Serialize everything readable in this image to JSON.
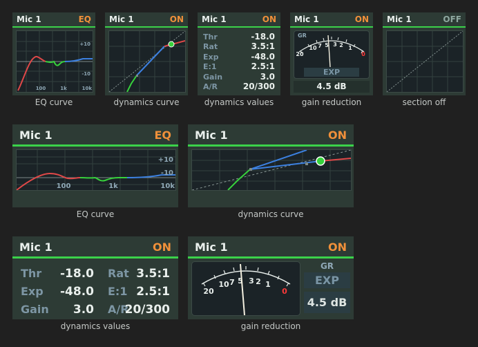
{
  "channel_name": "Mic 1",
  "colors": {
    "accent_line": "#3bd24a",
    "status_on": "#f0903a",
    "status_off": "#8fa8a0",
    "eq_low": "#e04848",
    "eq_mid": "#37d23c",
    "eq_high": "#3c80e0"
  },
  "panels": {
    "eq": {
      "status": "EQ",
      "caption": "EQ curve",
      "axis_labels": [
        "+10",
        "-10",
        "100",
        "1k",
        "10k"
      ]
    },
    "dynamics": {
      "status": "ON",
      "caption": "dynamics curve"
    },
    "values": {
      "status": "ON",
      "caption": "dynamics values",
      "params": [
        {
          "label": "Thr",
          "value": "-18.0"
        },
        {
          "label": "Rat",
          "value": "3.5:1"
        },
        {
          "label": "Exp",
          "value": "-48.0"
        },
        {
          "label": "E:1",
          "value": "2.5:1"
        },
        {
          "label": "Gain",
          "value": "3.0"
        },
        {
          "label": "A/R",
          "value": "20/300"
        }
      ]
    },
    "gain": {
      "status": "ON",
      "caption": "gain reduction",
      "gr_label": "GR",
      "exp_label": "EXP",
      "reading": "4.5 dB",
      "scale": [
        "20",
        "10",
        "7",
        "5",
        "3",
        "2",
        "1",
        "0"
      ]
    },
    "section_off": {
      "status": "OFF",
      "caption": "section off"
    }
  },
  "dynamics_curve": {
    "threshold_db": -18.0,
    "ratio": 3.5,
    "expander_threshold_db": -48.0,
    "expander_ratio": 2.5
  }
}
